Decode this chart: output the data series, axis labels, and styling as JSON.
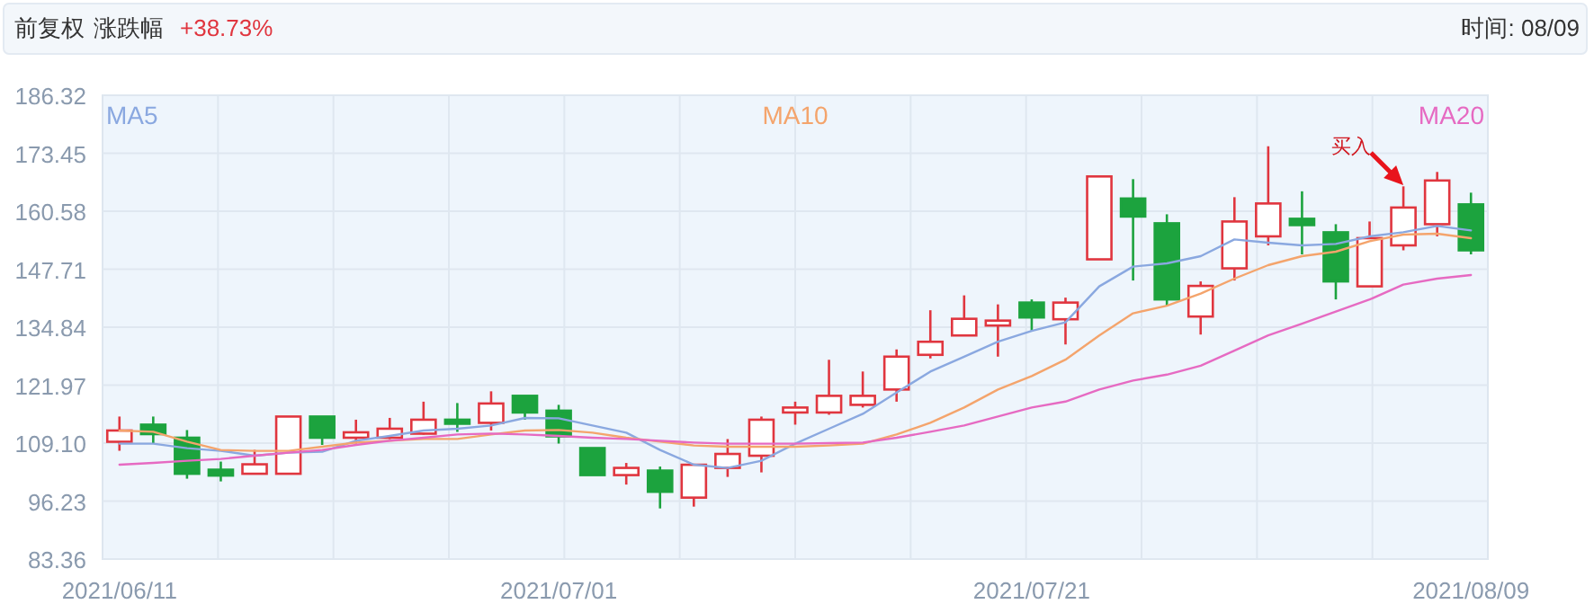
{
  "chart_data": {
    "type": "candlestick",
    "categories": [
      "2021/06/11",
      null,
      null,
      null,
      null,
      null,
      null,
      null,
      null,
      null,
      null,
      null,
      null,
      "2021/07/01",
      null,
      null,
      null,
      null,
      null,
      null,
      null,
      null,
      null,
      null,
      null,
      null,
      null,
      "2021/07/21",
      null,
      null,
      null,
      null,
      null,
      null,
      null,
      null,
      null,
      null,
      null,
      null,
      "2021/08/09"
    ],
    "ohlc": [
      [
        109.4,
        115.0,
        107.4,
        111.9
      ],
      [
        113.2,
        115.0,
        109.0,
        111.1
      ],
      [
        110.3,
        112.0,
        101.2,
        102.3
      ],
      [
        103.2,
        105.0,
        100.6,
        101.9
      ],
      [
        102.3,
        107.6,
        102.3,
        104.4
      ],
      [
        102.3,
        115.0,
        102.3,
        115.0
      ],
      [
        115.0,
        115.0,
        108.7,
        110.3
      ],
      [
        110.3,
        114.3,
        109.0,
        111.5
      ],
      [
        110.3,
        114.7,
        110.0,
        112.3
      ],
      [
        111.2,
        118.3,
        111.0,
        114.3
      ],
      [
        114.3,
        118.0,
        111.6,
        113.4
      ],
      [
        113.6,
        120.6,
        111.9,
        117.9
      ],
      [
        119.6,
        119.6,
        114.3,
        115.9
      ],
      [
        116.3,
        117.6,
        109.0,
        110.6
      ],
      [
        108.0,
        108.0,
        102.0,
        102.0
      ],
      [
        102.0,
        104.7,
        99.9,
        103.6
      ],
      [
        103.0,
        103.9,
        94.6,
        98.3
      ],
      [
        97.0,
        104.3,
        95.0,
        104.3
      ],
      [
        103.6,
        110.0,
        101.6,
        106.7
      ],
      [
        106.3,
        115.0,
        102.6,
        114.3
      ],
      [
        115.9,
        118.3,
        113.2,
        117.0
      ],
      [
        115.9,
        127.6,
        115.4,
        119.6
      ],
      [
        117.6,
        125.0,
        117.0,
        119.6
      ],
      [
        121.0,
        129.9,
        118.3,
        128.3
      ],
      [
        128.7,
        138.6,
        127.9,
        131.6
      ],
      [
        133.0,
        141.9,
        133.0,
        136.7
      ],
      [
        135.2,
        139.9,
        128.3,
        136.3
      ],
      [
        140.3,
        141.0,
        134.0,
        137.0
      ],
      [
        136.6,
        141.4,
        131.0,
        140.3
      ],
      [
        149.9,
        168.3,
        149.9,
        168.3
      ],
      [
        163.4,
        167.7,
        145.2,
        159.4
      ],
      [
        157.9,
        159.9,
        139.6,
        141.0
      ],
      [
        137.2,
        145.0,
        133.2,
        144.0
      ],
      [
        147.9,
        163.7,
        145.2,
        158.3
      ],
      [
        155.0,
        175.0,
        153.0,
        162.3
      ],
      [
        158.9,
        165.0,
        151.0,
        157.5
      ],
      [
        155.9,
        157.7,
        141.0,
        145.0
      ],
      [
        143.9,
        158.3,
        143.9,
        154.6
      ],
      [
        153.0,
        166.1,
        151.9,
        161.4
      ],
      [
        157.7,
        169.3,
        155.0,
        167.4
      ],
      [
        162.1,
        164.7,
        151.0,
        151.9
      ]
    ],
    "series": [
      {
        "name": "MA5",
        "type": "line",
        "color": "#8aa8e0",
        "values": [
          109.0,
          109.0,
          108.0,
          107.4,
          106.3,
          107.0,
          107.2,
          109.6,
          110.7,
          111.9,
          112.3,
          113.0,
          114.7,
          114.6,
          113.0,
          111.4,
          107.6,
          104.3,
          103.6,
          105.2,
          109.0,
          112.3,
          115.6,
          120.3,
          125.0,
          128.3,
          131.6,
          134.0,
          135.9,
          143.9,
          148.3,
          149.0,
          150.6,
          154.3,
          153.6,
          153.0,
          153.3,
          155.0,
          155.9,
          157.3,
          156.3
        ]
      },
      {
        "name": "MA10",
        "type": "line",
        "color": "#f4a46c",
        "values": [
          111.9,
          111.6,
          109.4,
          107.6,
          107.4,
          107.4,
          108.3,
          109.2,
          109.6,
          110.0,
          110.0,
          111.0,
          111.9,
          112.0,
          111.4,
          110.3,
          109.4,
          108.6,
          108.3,
          108.3,
          108.3,
          108.6,
          109.0,
          111.0,
          113.6,
          117.0,
          121.0,
          124.0,
          127.6,
          133.0,
          137.9,
          139.6,
          142.3,
          145.6,
          148.6,
          150.6,
          151.6,
          153.9,
          155.4,
          155.6,
          154.6
        ]
      },
      {
        "name": "MA20",
        "type": "line",
        "color": "#e66ac2",
        "values": [
          104.3,
          104.7,
          105.2,
          105.6,
          106.3,
          107.0,
          107.6,
          108.7,
          109.6,
          110.3,
          111.0,
          111.2,
          111.0,
          110.7,
          110.3,
          110.0,
          109.6,
          109.2,
          109.0,
          109.0,
          109.0,
          109.1,
          109.2,
          110.3,
          111.6,
          113.0,
          115.0,
          117.0,
          118.3,
          121.0,
          123.0,
          124.3,
          126.3,
          129.6,
          133.0,
          135.6,
          138.3,
          141.0,
          144.3,
          145.6,
          146.4
        ]
      }
    ],
    "ylim": [
      83.36,
      186.32
    ],
    "yticks": [
      83.36,
      96.23,
      {
        "value": 109.1,
        "label": "109.10"
      },
      121.97,
      134.84,
      147.71,
      160.58,
      173.45,
      186.32
    ],
    "grid": true,
    "legend": "top",
    "annotations": [
      "前复权",
      "涨跌幅",
      "+38.73%",
      "时间: 08/09",
      "买入"
    ]
  }
}
